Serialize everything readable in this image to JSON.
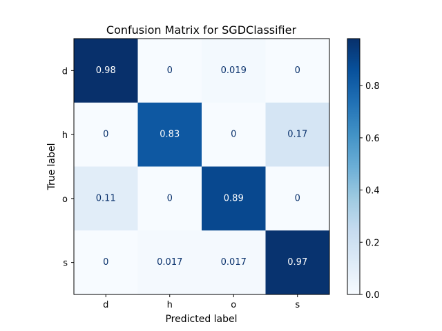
{
  "chart_data": {
    "type": "heatmap",
    "title": "Confusion Matrix for SGDClassifier",
    "xlabel": "Predicted label",
    "ylabel": "True label",
    "x_categories": [
      "d",
      "h",
      "o",
      "s"
    ],
    "y_categories": [
      "d",
      "h",
      "o",
      "s"
    ],
    "matrix": [
      [
        0.98,
        0,
        0.019,
        0
      ],
      [
        0,
        0.83,
        0,
        0.17
      ],
      [
        0.11,
        0,
        0.89,
        0
      ],
      [
        0,
        0.017,
        0.017,
        0.97
      ]
    ],
    "cell_labels": [
      [
        "0.98",
        "0",
        "0.019",
        "0"
      ],
      [
        "0",
        "0.83",
        "0",
        "0.17"
      ],
      [
        "0.11",
        "0",
        "0.89",
        "0"
      ],
      [
        "0",
        "0.017",
        "0.017",
        "0.97"
      ]
    ],
    "colormap": "Blues",
    "color_range": [
      0,
      0.98
    ],
    "colorbar_ticks": [
      "0.0",
      "0.2",
      "0.4",
      "0.6",
      "0.8"
    ],
    "colorbar_tick_values": [
      0,
      0.2,
      0.4,
      0.6,
      0.8
    ]
  }
}
